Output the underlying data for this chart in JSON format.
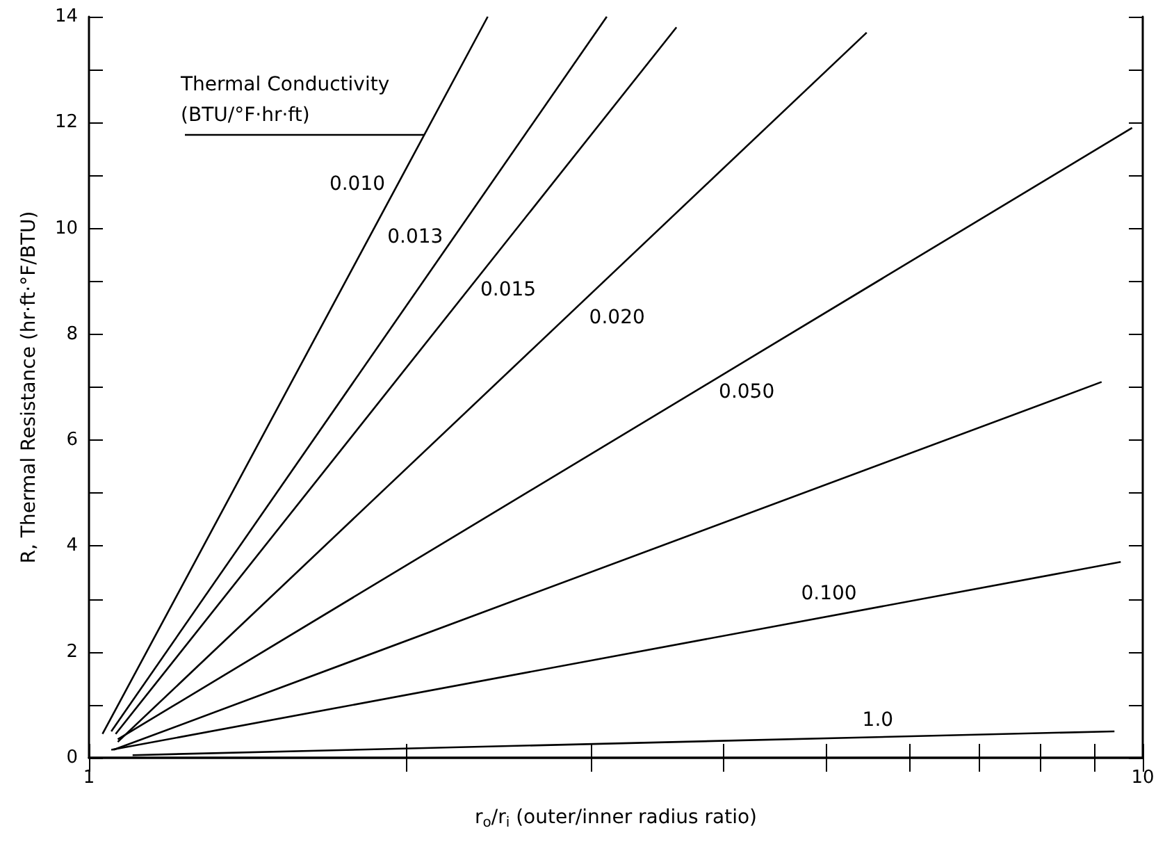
{
  "chart_data": {
    "type": "line",
    "xlabel": "r$_{o}$/r$_{i}$ (outer/inner radius ratio)",
    "ylabel": "R, Thermal Resistance (hr·ft·°F/BTU)",
    "legend_title": "Thermal Conductivity\n(BTU/°F·hr·ft)",
    "log": "x",
    "grid": false,
    "legend": false,
    "marker": "none",
    "line_style": "solid",
    "xlim": [
      1,
      10
    ],
    "xticks": [
      1,
      {
        "value": 2,
        "label": null
      },
      {
        "value": 3,
        "label": null
      },
      {
        "value": 4,
        "label": null
      },
      {
        "value": 5,
        "label": null
      },
      {
        "value": 6,
        "label": null
      },
      {
        "value": 7,
        "label": null
      },
      {
        "value": 8,
        "label": null
      },
      {
        "value": 9,
        "label": null
      },
      10
    ],
    "ylim": [
      0,
      14
    ],
    "yticks": [
      0,
      {
        "value": 1,
        "label": null
      },
      2,
      {
        "value": 3,
        "label": null
      },
      4,
      {
        "value": 5,
        "label": null
      },
      6,
      {
        "value": 7,
        "label": null
      },
      8,
      {
        "value": 9,
        "label": null
      },
      10,
      {
        "value": 11,
        "label": null
      },
      12,
      {
        "value": 13,
        "label": null
      },
      14
    ],
    "series": [
      {
        "name": "0.010",
        "color": "#000000",
        "x": [
          1.03,
          2.39
        ],
        "values": [
          0.45,
          14
        ]
      },
      {
        "name": "0.013",
        "color": "#000000",
        "x": [
          1.05,
          3.1
        ],
        "values": [
          0.5,
          14
        ]
      },
      {
        "name": "0.015",
        "color": "#000000",
        "x": [
          1.06,
          3.61
        ],
        "values": [
          0.45,
          13.8
        ]
      },
      {
        "name": "0.020",
        "color": "#000000",
        "x": [
          1.065,
          5.47
        ],
        "values": [
          0.3,
          13.7
        ]
      },
      {
        "name": "0.050",
        "color": "#000000",
        "x": [
          1.065,
          9.77
        ],
        "values": [
          0.35,
          11.9
        ]
      },
      {
        "color": "#000000",
        "x": [
          1.055,
          9.14
        ],
        "values": [
          0.15,
          7.1
        ]
      },
      {
        "name": "0.100",
        "color": "#000000",
        "x": [
          1.05,
          9.53
        ],
        "values": [
          0.15,
          3.7
        ]
      },
      {
        "name": "1.0",
        "color": "#000000",
        "x": [
          1.1,
          9.4
        ],
        "values": [
          0.05,
          0.5
        ]
      }
    ]
  }
}
